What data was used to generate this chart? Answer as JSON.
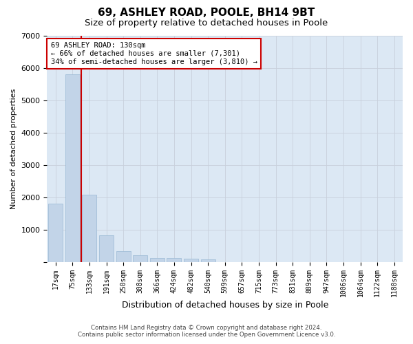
{
  "title1": "69, ASHLEY ROAD, POOLE, BH14 9BT",
  "title2": "Size of property relative to detached houses in Poole",
  "xlabel": "Distribution of detached houses by size in Poole",
  "ylabel": "Number of detached properties",
  "bar_labels": [
    "17sqm",
    "75sqm",
    "133sqm",
    "191sqm",
    "250sqm",
    "308sqm",
    "366sqm",
    "424sqm",
    "482sqm",
    "540sqm",
    "599sqm",
    "657sqm",
    "715sqm",
    "773sqm",
    "831sqm",
    "889sqm",
    "947sqm",
    "1006sqm",
    "1064sqm",
    "1122sqm",
    "1180sqm"
  ],
  "bar_values": [
    1800,
    5800,
    2070,
    830,
    340,
    195,
    120,
    110,
    95,
    80,
    0,
    0,
    0,
    0,
    0,
    0,
    0,
    0,
    0,
    0,
    0
  ],
  "bar_color": "#c2d4e8",
  "bar_edge_color": "#9ab8d4",
  "red_line_x": 1.5,
  "highlight_color": "#cc0000",
  "annotation_line1": "69 ASHLEY ROAD: 130sqm",
  "annotation_line2": "← 66% of detached houses are smaller (7,301)",
  "annotation_line3": "34% of semi-detached houses are larger (3,810) →",
  "annotation_box_color": "#ffffff",
  "annotation_border_color": "#cc0000",
  "ylim": [
    0,
    7000
  ],
  "yticks": [
    0,
    1000,
    2000,
    3000,
    4000,
    5000,
    6000,
    7000
  ],
  "grid_color": "#c8d0dc",
  "bg_color": "#dce8f4",
  "footer1": "Contains HM Land Registry data © Crown copyright and database right 2024.",
  "footer2": "Contains public sector information licensed under the Open Government Licence v3.0.",
  "title1_fontsize": 11,
  "title2_fontsize": 9.5,
  "tick_fontsize": 7,
  "ylabel_fontsize": 8,
  "xlabel_fontsize": 9,
  "annotation_fontsize": 7.5
}
